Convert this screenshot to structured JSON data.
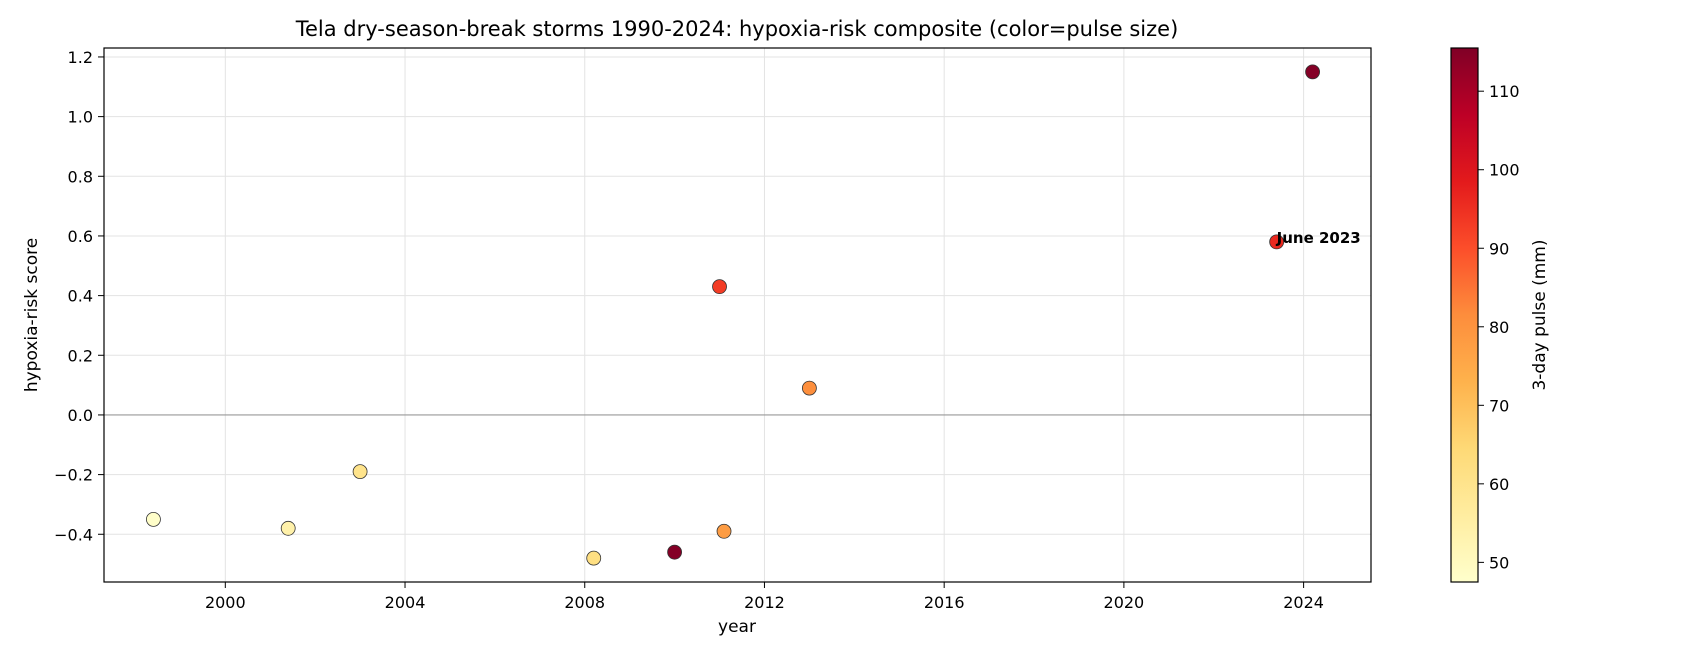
{
  "chart_data": {
    "type": "scatter",
    "title": "Tela dry-season-break storms 1990-2024: hypoxia-risk composite (color=pulse size)",
    "xlabel": "year",
    "ylabel": "hypoxia-risk score",
    "xlim": [
      1997.3,
      2025.5
    ],
    "ylim": [
      -0.56,
      1.23
    ],
    "xticks": [
      2000,
      2004,
      2008,
      2012,
      2016,
      2020,
      2024
    ],
    "yticks": [
      -0.4,
      -0.2,
      0.0,
      0.2,
      0.4,
      0.6,
      0.8,
      1.0,
      1.2
    ],
    "ytick_labels": [
      "−0.4",
      "−0.2",
      "0.0",
      "0.2",
      "0.4",
      "0.6",
      "0.8",
      "1.0",
      "1.2"
    ],
    "grid": true,
    "zero_line": true,
    "colormap": "YlOrRd",
    "colorbar": {
      "label": "3-day pulse (mm)",
      "range": [
        47.5,
        115.5
      ],
      "ticks": [
        50,
        60,
        70,
        80,
        90,
        100,
        110
      ]
    },
    "points": [
      {
        "x": 1998.4,
        "y": -0.35,
        "pulse": 48
      },
      {
        "x": 2001.4,
        "y": -0.38,
        "pulse": 54
      },
      {
        "x": 2003.0,
        "y": -0.19,
        "pulse": 60
      },
      {
        "x": 2008.2,
        "y": -0.48,
        "pulse": 62
      },
      {
        "x": 2010.0,
        "y": -0.46,
        "pulse": 115
      },
      {
        "x": 2011.0,
        "y": 0.43,
        "pulse": 93
      },
      {
        "x": 2011.1,
        "y": -0.39,
        "pulse": 78
      },
      {
        "x": 2013.0,
        "y": 0.09,
        "pulse": 81
      },
      {
        "x": 2023.4,
        "y": 0.58,
        "pulse": 96
      },
      {
        "x": 2024.2,
        "y": 1.15,
        "pulse": 115
      }
    ],
    "annotations": [
      {
        "text": "June 2023",
        "x": 2023.4,
        "y": 0.58,
        "color": "#ff0000"
      }
    ]
  }
}
